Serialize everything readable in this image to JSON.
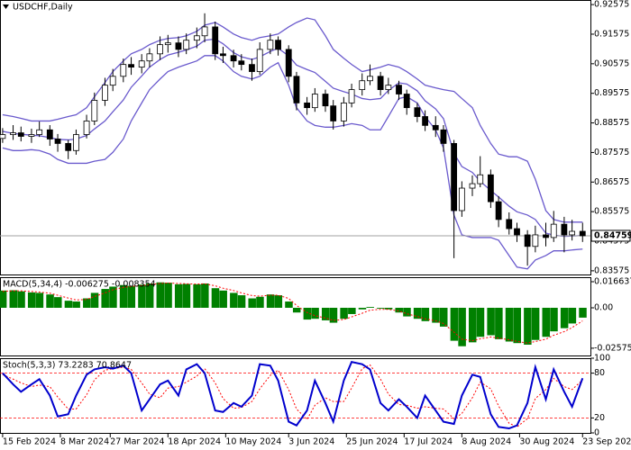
{
  "chart_data": [
    {
      "type": "candlestick",
      "title": "USDCHF,Daily",
      "x": [
        "2024-02-15",
        "2024-02-19",
        "2024-02-22",
        "2024-02-26",
        "2024-02-29",
        "2024-03-04",
        "2024-03-07",
        "2024-03-11",
        "2024-03-14",
        "2024-03-18",
        "2024-03-21",
        "2024-03-25",
        "2024-03-28",
        "2024-04-01",
        "2024-04-04",
        "2024-04-08",
        "2024-04-11",
        "2024-04-15",
        "2024-04-18",
        "2024-04-22",
        "2024-04-25",
        "2024-04-29",
        "2024-05-02",
        "2024-05-06",
        "2024-05-09",
        "2024-05-13",
        "2024-05-16",
        "2024-05-20",
        "2024-05-23",
        "2024-05-27",
        "2024-05-30",
        "2024-06-03",
        "2024-06-06",
        "2024-06-10",
        "2024-06-13",
        "2024-06-17",
        "2024-06-20",
        "2024-06-24",
        "2024-06-27",
        "2024-07-01",
        "2024-07-04",
        "2024-07-08",
        "2024-07-11",
        "2024-07-15",
        "2024-07-18",
        "2024-07-22",
        "2024-07-25",
        "2024-07-29",
        "2024-08-01",
        "2024-08-05",
        "2024-08-08",
        "2024-08-12",
        "2024-08-15",
        "2024-08-19",
        "2024-08-22",
        "2024-08-26",
        "2024-08-29",
        "2024-09-02",
        "2024-09-05",
        "2024-09-09",
        "2024-09-12",
        "2024-09-16",
        "2024-09-19",
        "2024-09-23"
      ],
      "open": [
        0.8805,
        0.8818,
        0.8824,
        0.8812,
        0.8818,
        0.8834,
        0.8803,
        0.8788,
        0.8764,
        0.8818,
        0.8864,
        0.8934,
        0.8985,
        0.9015,
        0.9055,
        0.9046,
        0.9067,
        0.9091,
        0.9122,
        0.9128,
        0.9106,
        0.9137,
        0.9152,
        0.9182,
        0.9091,
        0.9085,
        0.9067,
        0.9055,
        0.9031,
        0.9106,
        0.9137,
        0.9106,
        0.9015,
        0.8925,
        0.8909,
        0.8955,
        0.8915,
        0.8864,
        0.8925,
        0.897,
        0.9,
        0.9015,
        0.897,
        0.8985,
        0.8955,
        0.8909,
        0.8879,
        0.8849,
        0.8834,
        0.8788,
        0.8561,
        0.8637,
        0.8652,
        0.8682,
        0.8591,
        0.8531,
        0.85,
        0.8479,
        0.844,
        0.8479,
        0.847,
        0.8515,
        0.8479,
        0.8491
      ],
      "high": [
        0.884,
        0.885,
        0.8845,
        0.8838,
        0.8862,
        0.885,
        0.882,
        0.88,
        0.8835,
        0.8885,
        0.896,
        0.901,
        0.904,
        0.9075,
        0.908,
        0.909,
        0.911,
        0.915,
        0.9155,
        0.915,
        0.916,
        0.918,
        0.9228,
        0.92,
        0.9115,
        0.9105,
        0.909,
        0.9075,
        0.913,
        0.916,
        0.915,
        0.912,
        0.903,
        0.8945,
        0.8975,
        0.897,
        0.8935,
        0.8945,
        0.899,
        0.9025,
        0.9055,
        0.903,
        0.901,
        0.9,
        0.897,
        0.8925,
        0.89,
        0.888,
        0.885,
        0.88,
        0.866,
        0.868,
        0.8745,
        0.87,
        0.861,
        0.8555,
        0.852,
        0.8495,
        0.851,
        0.852,
        0.856,
        0.854,
        0.853,
        0.852
      ],
      "low": [
        0.879,
        0.88,
        0.8795,
        0.879,
        0.881,
        0.878,
        0.876,
        0.8735,
        0.875,
        0.8805,
        0.885,
        0.8915,
        0.8965,
        0.8995,
        0.902,
        0.9025,
        0.9045,
        0.907,
        0.9095,
        0.908,
        0.909,
        0.911,
        0.913,
        0.907,
        0.906,
        0.9045,
        0.9035,
        0.9,
        0.902,
        0.909,
        0.9085,
        0.8995,
        0.89,
        0.8885,
        0.8895,
        0.8895,
        0.8835,
        0.8845,
        0.891,
        0.895,
        0.8985,
        0.895,
        0.8955,
        0.8935,
        0.8885,
        0.886,
        0.883,
        0.881,
        0.876,
        0.84,
        0.854,
        0.861,
        0.864,
        0.857,
        0.8505,
        0.848,
        0.8455,
        0.8375,
        0.842,
        0.844,
        0.8455,
        0.842,
        0.846,
        0.8455
      ],
      "close": [
        0.8818,
        0.8824,
        0.8812,
        0.8818,
        0.8834,
        0.8803,
        0.8788,
        0.8764,
        0.8818,
        0.8864,
        0.8934,
        0.8985,
        0.9015,
        0.9055,
        0.9046,
        0.9067,
        0.9091,
        0.9122,
        0.9128,
        0.9106,
        0.9137,
        0.9152,
        0.9182,
        0.9091,
        0.9085,
        0.9067,
        0.9055,
        0.9031,
        0.9106,
        0.9137,
        0.9106,
        0.9015,
        0.8925,
        0.8909,
        0.8955,
        0.8915,
        0.8864,
        0.8925,
        0.897,
        0.9,
        0.9015,
        0.897,
        0.8985,
        0.8955,
        0.8909,
        0.8879,
        0.8849,
        0.8834,
        0.8788,
        0.8561,
        0.8637,
        0.8652,
        0.8682,
        0.8591,
        0.8531,
        0.85,
        0.8479,
        0.844,
        0.8479,
        0.847,
        0.8515,
        0.8479,
        0.8491,
        0.84759
      ],
      "up_color": "#ffffff",
      "down_color": "#000000",
      "bands": {
        "color": "#6a5acd",
        "upper": [
          0.8885,
          0.8879,
          0.8873,
          0.8864,
          0.8864,
          0.8864,
          0.887,
          0.8879,
          0.8885,
          0.8909,
          0.8946,
          0.8994,
          0.9031,
          0.9067,
          0.9091,
          0.9106,
          0.9122,
          0.9137,
          0.9143,
          0.9146,
          0.9152,
          0.9167,
          0.9188,
          0.9197,
          0.9182,
          0.9158,
          0.9146,
          0.9137,
          0.9146,
          0.9152,
          0.9158,
          0.9182,
          0.9197,
          0.9212,
          0.9206,
          0.9152,
          0.9106,
          0.9076,
          0.9055,
          0.9031,
          0.9037,
          0.9046,
          0.9055,
          0.9046,
          0.9031,
          0.9006,
          0.8985,
          0.8976,
          0.897,
          0.8964,
          0.894,
          0.8909,
          0.8849,
          0.8788,
          0.8752,
          0.8743,
          0.8743,
          0.8728,
          0.8667,
          0.8561,
          0.8531,
          0.8522,
          0.8522,
          0.8522
        ],
        "middle": [
          0.8829,
          0.8822,
          0.8819,
          0.8816,
          0.8814,
          0.8808,
          0.8802,
          0.88,
          0.8803,
          0.8815,
          0.8837,
          0.8864,
          0.8895,
          0.8935,
          0.8978,
          0.9016,
          0.9046,
          0.9072,
          0.9087,
          0.9096,
          0.9104,
          0.9117,
          0.9137,
          0.9141,
          0.9125,
          0.9095,
          0.9081,
          0.9072,
          0.9081,
          0.9099,
          0.911,
          0.9084,
          0.9053,
          0.9038,
          0.9028,
          0.8998,
          0.8975,
          0.8963,
          0.8955,
          0.894,
          0.8936,
          0.894,
          0.8967,
          0.8993,
          0.8989,
          0.8966,
          0.8932,
          0.8905,
          0.8872,
          0.8755,
          0.871,
          0.869,
          0.866,
          0.8629,
          0.8607,
          0.8576,
          0.8557,
          0.8546,
          0.8531,
          0.8485,
          0.8478,
          0.8474,
          0.8475,
          0.8477
        ],
        "lower": [
          0.8773,
          0.8764,
          0.8764,
          0.8767,
          0.8764,
          0.8752,
          0.8734,
          0.8721,
          0.8721,
          0.8721,
          0.8728,
          0.8734,
          0.8758,
          0.8803,
          0.8864,
          0.8925,
          0.897,
          0.9006,
          0.9031,
          0.9046,
          0.9055,
          0.9067,
          0.9085,
          0.9085,
          0.9067,
          0.9031,
          0.9015,
          0.9006,
          0.9015,
          0.9046,
          0.9061,
          0.8985,
          0.8909,
          0.8864,
          0.8849,
          0.8843,
          0.8843,
          0.8849,
          0.8855,
          0.8849,
          0.8834,
          0.8834,
          0.8879,
          0.894,
          0.8946,
          0.8925,
          0.8879,
          0.8834,
          0.8773,
          0.8546,
          0.8479,
          0.847,
          0.847,
          0.847,
          0.8461,
          0.8409,
          0.837,
          0.8364,
          0.8394,
          0.8409,
          0.8425,
          0.8425,
          0.8428,
          0.8431
        ]
      },
      "last_price": 0.84759,
      "xlim": [
        "2024-02-14",
        "2024-09-26"
      ],
      "xticks": [
        {
          "value": "2024-02-15",
          "label": "15 Feb 2024"
        },
        {
          "value": "2024-03-08",
          "label": "8 Mar 2024"
        },
        {
          "value": "2024-03-27",
          "label": "27 Mar 2024"
        },
        {
          "value": "2024-04-18",
          "label": "18 Apr 2024"
        },
        {
          "value": "2024-05-10",
          "label": "10 May 2024"
        },
        {
          "value": "2024-06-03",
          "label": "3 Jun 2024"
        },
        {
          "value": "2024-06-25",
          "label": "25 Jun 2024"
        },
        {
          "value": "2024-07-17",
          "label": "17 Jul 2024"
        },
        {
          "value": "2024-08-08",
          "label": "8 Aug 2024"
        },
        {
          "value": "2024-08-30",
          "label": "30 Aug 2024"
        },
        {
          "value": "2024-09-23",
          "label": "23 Sep 2024"
        }
      ],
      "ylim": [
        0.8345,
        0.9273
      ],
      "yticks": [
        0.83575,
        0.84575,
        0.85575,
        0.86575,
        0.87575,
        0.88575,
        0.89575,
        0.90575,
        0.91575,
        0.92575
      ]
    },
    {
      "type": "macd",
      "title": "MACD(5,34,4) -0.006275 -0.008354",
      "histogram": [
        0.011,
        0.0112,
        0.0105,
        0.0098,
        0.0095,
        0.0085,
        0.0068,
        0.0045,
        0.004,
        0.006,
        0.0095,
        0.012,
        0.0135,
        0.0145,
        0.014,
        0.0148,
        0.0155,
        0.0162,
        0.016,
        0.015,
        0.0152,
        0.015,
        0.0155,
        0.0125,
        0.011,
        0.0095,
        0.008,
        0.006,
        0.007,
        0.0085,
        0.008,
        0.004,
        -0.003,
        -0.0075,
        -0.007,
        -0.008,
        -0.0095,
        -0.007,
        -0.004,
        -0.001,
        0.0005,
        -0.0005,
        -0.001,
        -0.003,
        -0.0055,
        -0.007,
        -0.0085,
        -0.0095,
        -0.012,
        -0.021,
        -0.0245,
        -0.022,
        -0.0185,
        -0.0175,
        -0.02,
        -0.0215,
        -0.0225,
        -0.0235,
        -0.0205,
        -0.0185,
        -0.015,
        -0.013,
        -0.01,
        -0.006275
      ],
      "signal": [
        0.0105,
        0.0108,
        0.0108,
        0.0104,
        0.01,
        0.0093,
        0.008,
        0.0062,
        0.005,
        0.0053,
        0.0072,
        0.0095,
        0.0115,
        0.013,
        0.0136,
        0.0142,
        0.0148,
        0.0155,
        0.0158,
        0.0155,
        0.0153,
        0.0151,
        0.0153,
        0.014,
        0.0125,
        0.011,
        0.0095,
        0.0078,
        0.0074,
        0.008,
        0.008,
        0.006,
        0.0015,
        -0.003,
        -0.005,
        -0.0065,
        -0.008,
        -0.0075,
        -0.0058,
        -0.0035,
        -0.0015,
        -0.001,
        -0.001,
        -0.002,
        -0.0038,
        -0.0055,
        -0.007,
        -0.0083,
        -0.01,
        -0.0155,
        -0.02,
        -0.021,
        -0.0198,
        -0.0186,
        -0.0193,
        -0.0204,
        -0.0214,
        -0.0225,
        -0.0215,
        -0.02,
        -0.0175,
        -0.0152,
        -0.0126,
        -0.008354
      ],
      "histogram_color": "#008000",
      "signal_color": "#ff0000",
      "ylim": [
        -0.0304,
        0.0195
      ],
      "yticks": [
        -0.025754,
        {
          "value": 0,
          "label": "0.00"
        },
        0.016637
      ]
    },
    {
      "type": "stochastic",
      "title": "Stoch(5,3,3) 73.2283 70.8647",
      "main": [
        80,
        65,
        55,
        65,
        72,
        50,
        22,
        25,
        50,
        78,
        85,
        88,
        86,
        90,
        80,
        30,
        45,
        65,
        70,
        50,
        85,
        92,
        80,
        30,
        28,
        40,
        35,
        50,
        92,
        90,
        70,
        15,
        10,
        30,
        70,
        40,
        15,
        70,
        95,
        92,
        85,
        40,
        30,
        45,
        35,
        20,
        50,
        30,
        15,
        12,
        50,
        78,
        75,
        25,
        8,
        6,
        10,
        40,
        88,
        45,
        85,
        55,
        35,
        73.2283
      ],
      "signal": [
        78,
        72,
        67,
        62,
        64,
        62,
        48,
        32,
        32,
        51,
        71,
        84,
        86,
        88,
        85,
        67,
        52,
        47,
        60,
        62,
        68,
        76,
        86,
        67,
        46,
        33,
        34,
        42,
        59,
        77,
        84,
        58,
        32,
        18,
        37,
        47,
        42,
        42,
        60,
        86,
        91,
        72,
        52,
        38,
        37,
        33,
        35,
        33,
        32,
        19,
        26,
        47,
        68,
        59,
        36,
        13,
        8,
        19,
        46,
        58,
        73,
        62,
        58,
        70.8647
      ],
      "main_color": "#0000cd",
      "signal_color": "#ff0000",
      "levels": [
        20,
        80
      ],
      "ylim": [
        0,
        100
      ],
      "yticks": [
        0,
        20,
        80,
        100
      ]
    }
  ]
}
